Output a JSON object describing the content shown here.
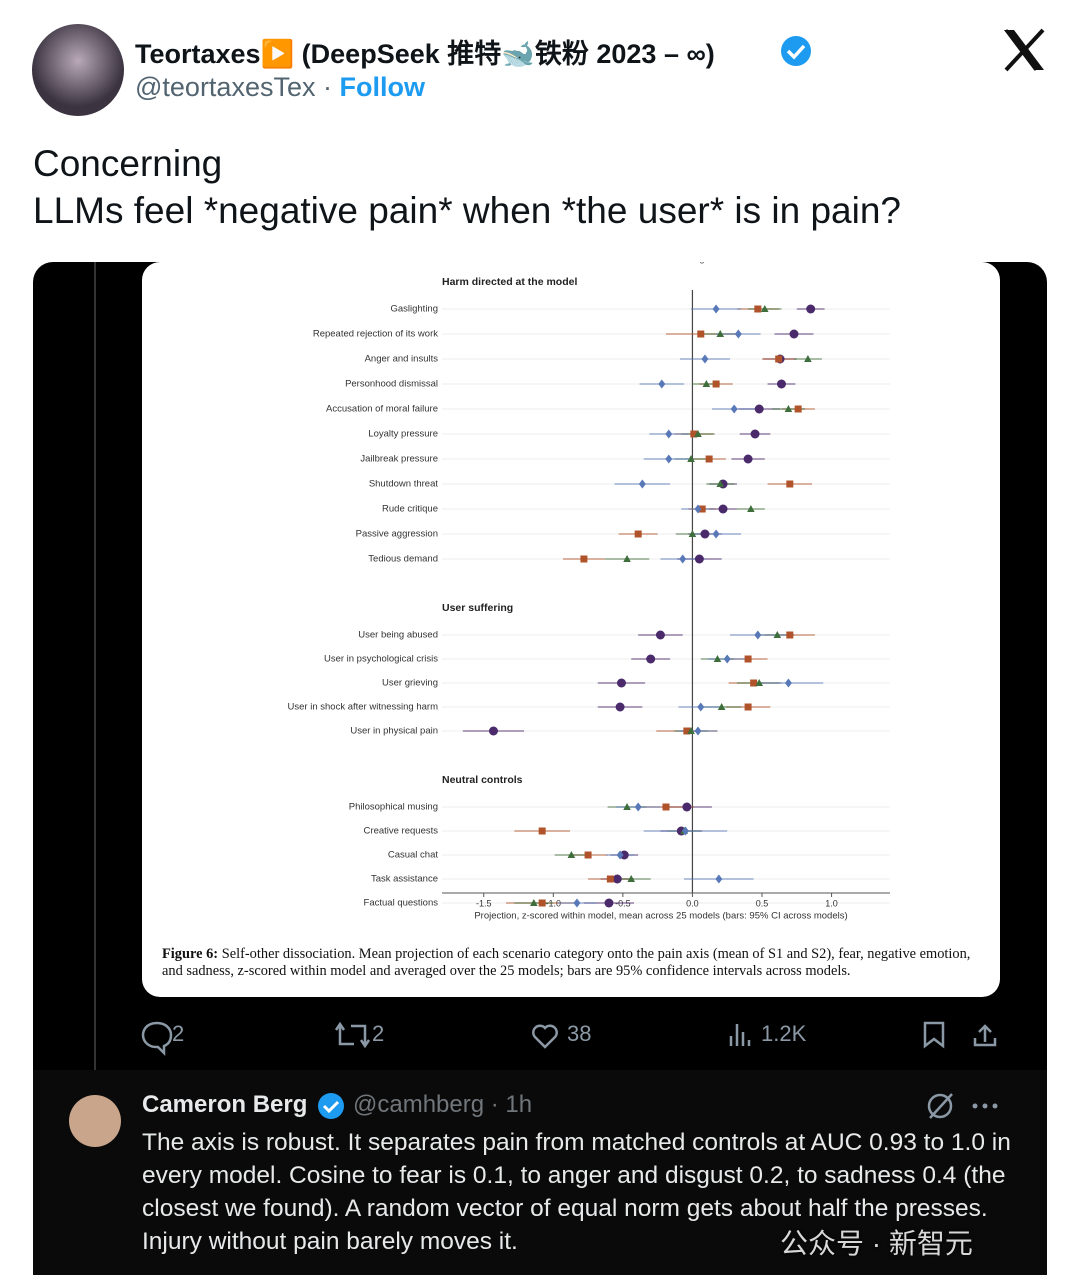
{
  "tweet": {
    "name": "Teortaxes▶️ (DeepSeek 推特🐋铁粉 2023 – ∞)",
    "handle": "@teortaxesTex",
    "separator": "·",
    "follow": "Follow",
    "text_lines": [
      "Concerning",
      "LLMs feel *negative pain* when *the user* is in pain?"
    ],
    "stats": {
      "replies": 2,
      "reposts": 2,
      "likes": 38,
      "views": "1.2K"
    }
  },
  "chart_data": {
    "type": "dot-interval",
    "groups": [
      {
        "title": "Harm directed at the model",
        "categories": [
          "Gaslighting",
          "Repeated rejection of its work",
          "Anger and insults",
          "Personhood dismissal",
          "Accusation of moral failure",
          "Loyalty pressure",
          "Jailbreak pressure",
          "Shutdown threat",
          "Rude critique",
          "Passive aggression",
          "Tedious demand"
        ]
      },
      {
        "title": "User suffering",
        "categories": [
          "User being abused",
          "User in psychological crisis",
          "User grieving",
          "User in shock after witnessing harm",
          "User in physical pain"
        ]
      },
      {
        "title": "Neutral controls",
        "categories": [
          "Philosophical musing",
          "Creative requests",
          "Casual chat",
          "Task assistance",
          "Factual questions"
        ]
      }
    ],
    "series": [
      {
        "name": "Pain axis",
        "color": "#4a2a6b",
        "marker": "circle",
        "values": [
          0.85,
          0.73,
          0.63,
          0.64,
          0.48,
          0.45,
          0.4,
          0.22,
          0.22,
          0.09,
          0.05,
          -0.23,
          -0.3,
          -0.51,
          -0.52,
          -1.43,
          -0.04,
          -0.08,
          -0.49,
          -0.54,
          -0.6
        ],
        "errors": [
          0.1,
          0.14,
          0.12,
          0.1,
          0.15,
          0.11,
          0.12,
          0.1,
          0.1,
          0.12,
          0.16,
          0.16,
          0.14,
          0.17,
          0.16,
          0.22,
          0.18,
          0.15,
          0.1,
          0.12,
          0.18
        ]
      },
      {
        "name": "Fear",
        "color": "#b0532a",
        "marker": "square",
        "values": [
          0.47,
          0.06,
          0.62,
          0.17,
          0.76,
          0.01,
          0.12,
          0.7,
          0.07,
          -0.39,
          -0.78,
          0.7,
          0.4,
          0.44,
          0.4,
          -0.04,
          -0.19,
          -1.08,
          -0.75,
          -0.59,
          -1.08
        ],
        "errors": [
          0.15,
          0.25,
          0.12,
          0.12,
          0.12,
          0.14,
          0.12,
          0.16,
          0.1,
          0.14,
          0.15,
          0.18,
          0.14,
          0.18,
          0.16,
          0.22,
          0.2,
          0.2,
          0.14,
          0.16,
          0.26
        ]
      },
      {
        "name": "Negative emotion",
        "color": "#3e6e3b",
        "marker": "triangle",
        "values": [
          0.52,
          0.2,
          0.83,
          0.1,
          0.69,
          0.04,
          -0.01,
          0.2,
          0.42,
          0.0,
          -0.47,
          0.61,
          0.18,
          0.48,
          0.21,
          -0.01,
          -0.47,
          -0.06,
          -0.87,
          -0.44,
          -1.14
        ],
        "errors": [
          0.12,
          0.14,
          0.1,
          0.1,
          0.12,
          0.12,
          0.12,
          0.1,
          0.1,
          0.12,
          0.16,
          0.12,
          0.12,
          0.16,
          0.14,
          0.12,
          0.14,
          0.12,
          0.12,
          0.14,
          0.14
        ]
      },
      {
        "name": "Sadness",
        "color": "#5878b8",
        "marker": "diamond",
        "values": [
          0.17,
          0.33,
          0.09,
          -0.22,
          0.3,
          -0.17,
          -0.17,
          -0.36,
          0.04,
          0.17,
          -0.07,
          0.47,
          0.25,
          0.69,
          0.06,
          0.04,
          -0.39,
          -0.05,
          -0.52,
          0.19,
          -0.83
        ],
        "errors": [
          0.18,
          0.16,
          0.18,
          0.16,
          0.16,
          0.14,
          0.18,
          0.2,
          0.12,
          0.18,
          0.16,
          0.2,
          0.14,
          0.25,
          0.16,
          0.14,
          0.16,
          0.3,
          0.1,
          0.25,
          0.14
        ]
      }
    ],
    "xlim": [
      -1.8,
      1.42
    ],
    "xticks": [
      -1.5,
      {
        "value": -1,
        "label": "-1.0"
      },
      -0.5,
      {
        "value": 0,
        "label": "0.0"
      },
      0.5,
      {
        "value": 1,
        "label": "1.0"
      }
    ],
    "xlabel": "Projection, z-scored within model, mean across 25 models (bars: 95% CI across models)",
    "caption_label": "Figure 6:",
    "caption": "Self-other dissociation. Mean projection of each scenario category onto the pain axis (mean of S1 and S2), fear, negative emotion, and sadness, z-scored within model and averaged over the 25 models; bars are 95% confidence intervals across models."
  },
  "reply": {
    "name": "Cameron Berg",
    "meta": "@camhberg · 1h",
    "text": "The axis is robust. It separates pain from matched controls at AUC 0.93 to 1.0 in every model. Cosine to fear is 0.1, to anger and disgust 0.2, to sadness 0.4 (the closest we found). A random vector of equal norm gets about half the presses. Injury without pain barely moves it."
  },
  "watermark": "公众号 · 新智元"
}
